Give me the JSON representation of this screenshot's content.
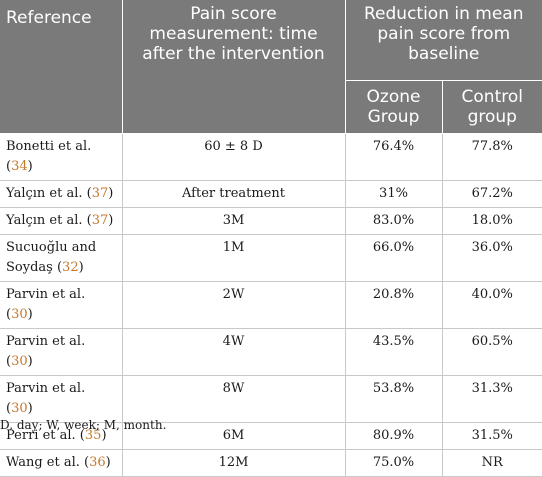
{
  "header": {
    "reference": "Reference",
    "time": "Pain score measurement: time after the intervention",
    "reduction": "Reduction in mean pain score from baseline",
    "ozone": "Ozone Group",
    "control": "Control group"
  },
  "rows": [
    {
      "ref": "Bonetti et al.",
      "cite": "34",
      "time": "60 ± 8 D",
      "ozone": "76.4%",
      "control": "77.8%"
    },
    {
      "ref": "Yalçın et al.",
      "cite": "37",
      "time": "After treatment",
      "ozone": "31%",
      "control": "67.2%"
    },
    {
      "ref": "Yalçın et al.",
      "cite": "37",
      "time": "3M",
      "ozone": "83.0%",
      "control": "18.0%"
    },
    {
      "ref": "Sucuoğlu and Soydaş",
      "cite": "32",
      "time": "1M",
      "ozone": "66.0%",
      "control": "36.0%"
    },
    {
      "ref": "Parvin et al.",
      "cite": "30",
      "time": "2W",
      "ozone": "20.8%",
      "control": "40.0%"
    },
    {
      "ref": "Parvin et al.",
      "cite": "30",
      "time": "4W",
      "ozone": "43.5%",
      "control": "60.5%"
    },
    {
      "ref": "Parvin et al.",
      "cite": "30",
      "time": "8W",
      "ozone": "53.8%",
      "control": "31.3%"
    },
    {
      "ref": "Perri et al.",
      "cite": "35",
      "time": "6M",
      "ozone": "80.9%",
      "control": "31.5%"
    },
    {
      "ref": "Wang et al.",
      "cite": "36",
      "time": "12M",
      "ozone": "75.0%",
      "control": "NR"
    }
  ],
  "footnote": "D, day; W, week; M, month.",
  "colors": {
    "header_bg": "#7a7a7a",
    "citation": "#c47a2c"
  }
}
